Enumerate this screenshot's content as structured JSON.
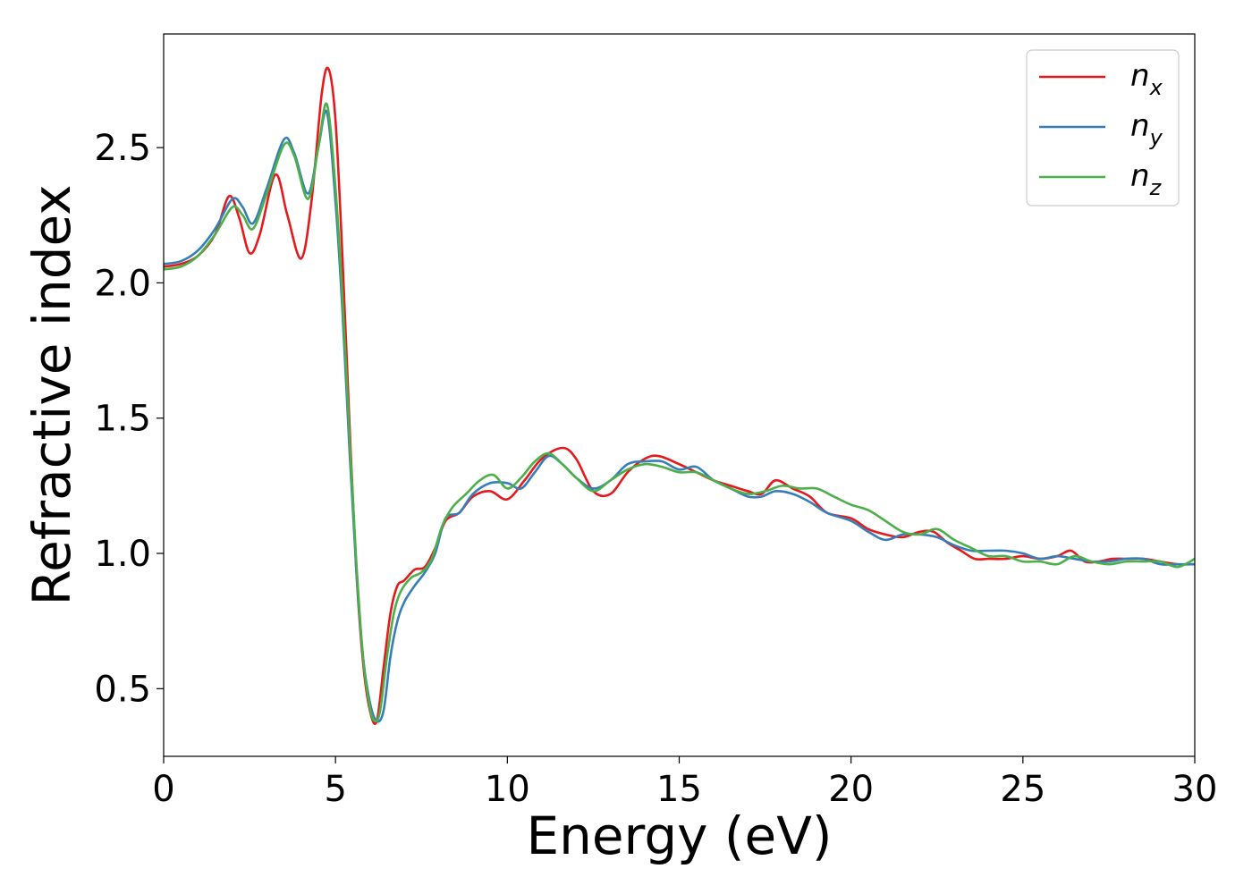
{
  "chart_data": {
    "type": "line",
    "xlabel": "Energy (eV)",
    "ylabel": "Refractive index",
    "xlim": [
      0,
      30
    ],
    "ylim": [
      0.25,
      2.92
    ],
    "xticks": [
      0,
      5,
      10,
      15,
      20,
      25,
      30
    ],
    "xtick_labels": [
      "0",
      "5",
      "10",
      "15",
      "20",
      "25",
      "30"
    ],
    "yticks": [
      0.5,
      1.0,
      1.5,
      2.0,
      2.5
    ],
    "ytick_labels": [
      "0.5",
      "1.0",
      "1.5",
      "2.0",
      "2.5"
    ],
    "grid": false,
    "legend_position": "top-right",
    "series": [
      {
        "name": "n",
        "subscript": "x",
        "color": "#e41a1c",
        "x": [
          0,
          0.5,
          1.0,
          1.5,
          1.9,
          2.2,
          2.5,
          2.8,
          3.25,
          3.6,
          4.0,
          4.3,
          4.6,
          4.8,
          5.0,
          5.2,
          5.4,
          5.6,
          5.8,
          6.0,
          6.2,
          6.4,
          6.6,
          6.8,
          7.0,
          7.3,
          7.6,
          7.9,
          8.2,
          8.6,
          9.0,
          9.5,
          10.0,
          10.5,
          11.0,
          11.6,
          12.0,
          12.5,
          13.0,
          13.5,
          14.0,
          14.4,
          15.0,
          15.5,
          16.0,
          16.5,
          17.0,
          17.4,
          17.8,
          18.3,
          18.8,
          19.3,
          20.0,
          20.5,
          21.0,
          21.5,
          22.0,
          22.4,
          22.8,
          23.2,
          23.6,
          24.0,
          24.5,
          25.0,
          25.5,
          26.0,
          26.4,
          26.8,
          27.2,
          27.6,
          28.0,
          28.5,
          29.0,
          29.5,
          30.0
        ],
        "y": [
          2.06,
          2.07,
          2.1,
          2.18,
          2.32,
          2.24,
          2.11,
          2.18,
          2.4,
          2.25,
          2.09,
          2.3,
          2.7,
          2.79,
          2.6,
          2.1,
          1.5,
          0.95,
          0.6,
          0.42,
          0.38,
          0.58,
          0.78,
          0.88,
          0.9,
          0.94,
          0.95,
          1.02,
          1.12,
          1.15,
          1.21,
          1.23,
          1.2,
          1.27,
          1.35,
          1.39,
          1.35,
          1.23,
          1.22,
          1.3,
          1.35,
          1.36,
          1.33,
          1.3,
          1.27,
          1.25,
          1.23,
          1.22,
          1.27,
          1.24,
          1.21,
          1.15,
          1.13,
          1.09,
          1.07,
          1.06,
          1.08,
          1.08,
          1.04,
          1.01,
          0.98,
          0.98,
          0.98,
          0.99,
          0.98,
          0.99,
          1.01,
          0.97,
          0.97,
          0.98,
          0.98,
          0.98,
          0.97,
          0.96,
          0.96
        ]
      },
      {
        "name": "n",
        "subscript": "y",
        "color": "#377eb8",
        "x": [
          0,
          0.5,
          1.0,
          1.5,
          2.0,
          2.3,
          2.6,
          3.0,
          3.5,
          3.8,
          4.2,
          4.5,
          4.75,
          5.0,
          5.2,
          5.4,
          5.6,
          5.8,
          6.0,
          6.2,
          6.4,
          6.6,
          6.8,
          7.0,
          7.3,
          7.6,
          7.9,
          8.2,
          8.6,
          9.0,
          9.5,
          10.0,
          10.4,
          10.8,
          11.2,
          11.6,
          12.0,
          12.5,
          13.0,
          13.5,
          14.0,
          14.5,
          15.0,
          15.5,
          16.0,
          16.5,
          17.0,
          17.4,
          17.8,
          18.3,
          18.8,
          19.3,
          20.0,
          20.5,
          21.0,
          21.5,
          22.0,
          22.5,
          23.0,
          23.5,
          24.0,
          24.5,
          25.0,
          25.5,
          26.0,
          26.5,
          27.0,
          27.5,
          28.0,
          28.5,
          29.0,
          29.5,
          30.0
        ],
        "y": [
          2.07,
          2.08,
          2.12,
          2.2,
          2.31,
          2.28,
          2.22,
          2.35,
          2.53,
          2.48,
          2.33,
          2.5,
          2.63,
          2.3,
          1.9,
          1.4,
          0.95,
          0.62,
          0.45,
          0.38,
          0.42,
          0.62,
          0.75,
          0.82,
          0.88,
          0.93,
          1.0,
          1.13,
          1.15,
          1.22,
          1.26,
          1.26,
          1.24,
          1.3,
          1.36,
          1.33,
          1.28,
          1.24,
          1.27,
          1.33,
          1.34,
          1.34,
          1.31,
          1.32,
          1.27,
          1.24,
          1.21,
          1.21,
          1.23,
          1.22,
          1.19,
          1.15,
          1.12,
          1.08,
          1.05,
          1.07,
          1.07,
          1.06,
          1.03,
          1.01,
          1.01,
          1.01,
          1.0,
          0.98,
          0.99,
          0.98,
          0.97,
          0.97,
          0.98,
          0.98,
          0.96,
          0.96,
          0.96
        ]
      },
      {
        "name": "n",
        "subscript": "z",
        "color": "#4daf4a",
        "x": [
          0,
          0.5,
          1.0,
          1.5,
          2.0,
          2.3,
          2.6,
          3.0,
          3.5,
          3.8,
          4.2,
          4.5,
          4.75,
          5.0,
          5.2,
          5.4,
          5.6,
          5.8,
          6.0,
          6.15,
          6.3,
          6.5,
          6.7,
          6.9,
          7.2,
          7.5,
          7.8,
          8.1,
          8.4,
          8.8,
          9.2,
          9.6,
          10.0,
          10.4,
          10.8,
          11.2,
          11.6,
          12.0,
          12.5,
          13.0,
          13.5,
          14.0,
          14.5,
          15.0,
          15.5,
          16.0,
          16.5,
          17.0,
          17.5,
          18.0,
          18.5,
          19.0,
          19.5,
          20.0,
          20.5,
          21.0,
          21.5,
          22.0,
          22.5,
          23.0,
          23.5,
          24.0,
          24.5,
          25.0,
          25.5,
          26.0,
          26.5,
          27.0,
          27.5,
          28.0,
          28.5,
          29.0,
          29.5,
          30.0
        ],
        "y": [
          2.05,
          2.06,
          2.1,
          2.18,
          2.28,
          2.25,
          2.2,
          2.33,
          2.51,
          2.47,
          2.31,
          2.5,
          2.66,
          2.35,
          1.95,
          1.45,
          0.98,
          0.62,
          0.43,
          0.38,
          0.42,
          0.62,
          0.78,
          0.86,
          0.91,
          0.93,
          0.98,
          1.1,
          1.17,
          1.22,
          1.27,
          1.29,
          1.24,
          1.28,
          1.34,
          1.37,
          1.33,
          1.28,
          1.23,
          1.27,
          1.31,
          1.33,
          1.32,
          1.3,
          1.3,
          1.27,
          1.24,
          1.22,
          1.23,
          1.25,
          1.24,
          1.24,
          1.21,
          1.18,
          1.16,
          1.12,
          1.08,
          1.07,
          1.09,
          1.05,
          1.02,
          0.99,
          0.99,
          0.97,
          0.97,
          0.96,
          0.99,
          0.97,
          0.96,
          0.97,
          0.97,
          0.97,
          0.95,
          0.98
        ]
      }
    ]
  }
}
